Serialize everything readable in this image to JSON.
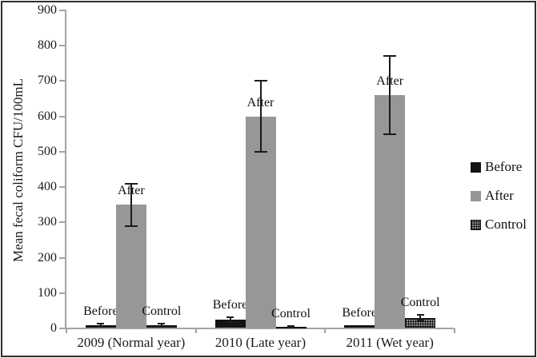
{
  "chart_data": {
    "type": "bar",
    "title": "",
    "ylabel": "Mean fecal coliform CFU/100mL",
    "xlabel": "",
    "ylim": [
      0,
      900
    ],
    "yticks": [
      0,
      100,
      200,
      300,
      400,
      500,
      600,
      700,
      800,
      900
    ],
    "grid": false,
    "legend_position": "right",
    "categories": [
      "2009 (Normal year)",
      "2010 (Late year)",
      "2011 (Wet year)"
    ],
    "series": [
      {
        "name": "Before",
        "color": "#141414",
        "pattern": "solid-dark",
        "values": [
          10,
          25,
          10
        ],
        "errors": [
          4,
          7,
          0
        ]
      },
      {
        "name": "After",
        "color": "#979797",
        "pattern": "solid-gray",
        "values": [
          350,
          600,
          660
        ],
        "errors": [
          60,
          100,
          110
        ]
      },
      {
        "name": "Control",
        "color": "#8d8d8d",
        "pattern": "dotted",
        "values": [
          10,
          5,
          30
        ],
        "errors": [
          3,
          2,
          8
        ]
      }
    ],
    "bar_labels_shown": true,
    "legend_entries": [
      "Before",
      "After",
      "Control"
    ],
    "axis_color": "#a3a3a3",
    "text_color": "#1b1b1b"
  }
}
